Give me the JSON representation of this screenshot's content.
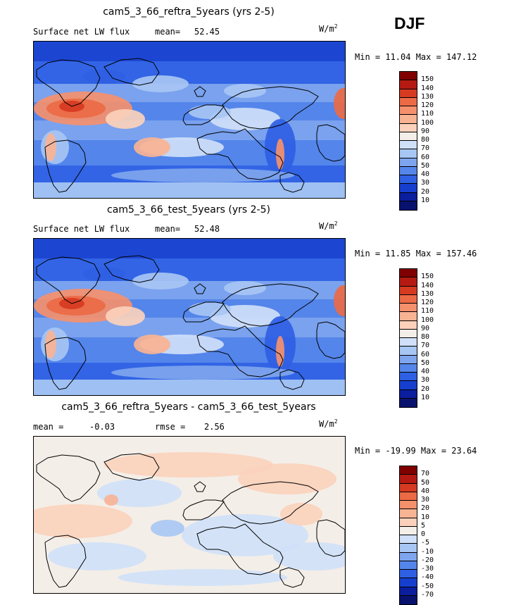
{
  "season": "DJF",
  "panels": [
    {
      "title": "cam5_3_66_reftra_5years (yrs 2-5)",
      "left_label": "Surface net LW flux",
      "stat_label": "mean=",
      "stat_value": "52.45",
      "stat2_label": "",
      "stat2_value": "",
      "unit": "W/m",
      "unit_exp": "2",
      "minmax": "Min =  11.04 Max = 147.12",
      "kind": "field",
      "levels": [
        "150",
        "140",
        "130",
        "120",
        "110",
        "100",
        "90",
        "80",
        "70",
        "60",
        "50",
        "40",
        "30",
        "20",
        "10"
      ],
      "colors": [
        "#800000",
        "#b51a12",
        "#d63b22",
        "#ec6a45",
        "#f5906d",
        "#f8b393",
        "#fbd1bb",
        "#f4eee8",
        "#cfe0f8",
        "#a7c6f4",
        "#7ea5ee",
        "#5485ea",
        "#2f60e4",
        "#163fcf",
        "#0b1e9e",
        "#08126e"
      ]
    },
    {
      "title": "cam5_3_66_test_5years (yrs 2-5)",
      "left_label": "Surface net LW flux",
      "stat_label": "mean=",
      "stat_value": "52.48",
      "stat2_label": "",
      "stat2_value": "",
      "unit": "W/m",
      "unit_exp": "2",
      "minmax": "Min =  11.85 Max = 157.46",
      "kind": "field",
      "levels": [
        "150",
        "140",
        "130",
        "120",
        "110",
        "100",
        "90",
        "80",
        "70",
        "60",
        "50",
        "40",
        "30",
        "20",
        "10"
      ],
      "colors": [
        "#800000",
        "#b51a12",
        "#d63b22",
        "#ec6a45",
        "#f5906d",
        "#f8b393",
        "#fbd1bb",
        "#f4eee8",
        "#cfe0f8",
        "#a7c6f4",
        "#7ea5ee",
        "#5485ea",
        "#2f60e4",
        "#163fcf",
        "#0b1e9e",
        "#08126e"
      ]
    },
    {
      "title": "cam5_3_66_reftra_5years - cam5_3_66_test_5years",
      "left_label": "mean =",
      "stat_label": "",
      "stat_value": "-0.03",
      "stat2_label": "rmse =",
      "stat2_value": "2.56",
      "unit": "W/m",
      "unit_exp": "2",
      "minmax": "Min = -19.99 Max =  23.64",
      "kind": "diff",
      "levels": [
        "70",
        "50",
        "40",
        "30",
        "20",
        "10",
        "5",
        "0",
        "-5",
        "-10",
        "-20",
        "-30",
        "-40",
        "-50",
        "-70"
      ],
      "colors": [
        "#800000",
        "#b51a12",
        "#d63b22",
        "#ec6a45",
        "#f5906d",
        "#f8b393",
        "#fbd1bb",
        "#f4eee8",
        "#cfe0f8",
        "#a7c6f4",
        "#7ea5ee",
        "#5485ea",
        "#2f60e4",
        "#163fcf",
        "#0b1e9e",
        "#08126e"
      ]
    }
  ]
}
